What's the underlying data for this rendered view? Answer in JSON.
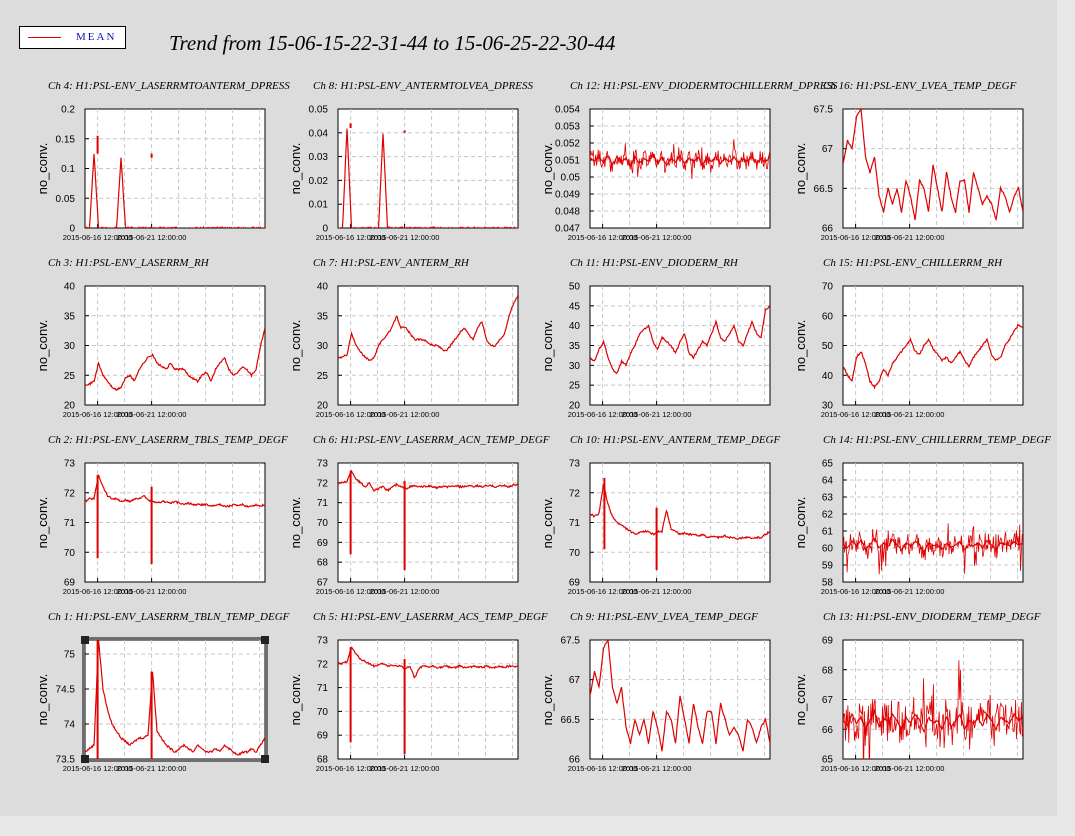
{
  "title": "Trend from 15-06-15-22-31-44 to 15-06-25-22-30-44",
  "legend": {
    "label": "MEAN",
    "color": "#e00000"
  },
  "colors": {
    "series": "#e00000",
    "background": "#dcdcdc",
    "plot_bg": "#ffffff",
    "grid": "#c8c8c8"
  },
  "chart_data": [
    {
      "type": "line",
      "title": "Ch 4: H1:PSL-ENV_LASERRMTOANTERM_DPRESS",
      "ylabel": "no_conv.",
      "ylim": [
        0,
        0.2
      ],
      "yticks": [
        "0",
        "0.05",
        "0.1",
        "0.15",
        "0.2"
      ],
      "xticks": [
        "2015-06-16 12:00:00",
        "2015-06-21 12:00:00"
      ],
      "grid": true,
      "series": [
        {
          "values": [
            0,
            0,
            0.125,
            0,
            0,
            0,
            0,
            0,
            0.118,
            0,
            0,
            0,
            0,
            0,
            0,
            0,
            0,
            0,
            0,
            0,
            0,
            0,
            0,
            0,
            0,
            0,
            0,
            0,
            0,
            0,
            0,
            0,
            0,
            0,
            0,
            0,
            0,
            0,
            0,
            0,
            0
          ]
        }
      ]
    },
    {
      "type": "line",
      "title": "Ch 8: H1:PSL-ENV_ANTERMTOLVEA_DPRESS",
      "ylabel": "no_conv.",
      "ylim": [
        0,
        0.05
      ],
      "yticks": [
        "0",
        "0.01",
        "0.02",
        "0.03",
        "0.04",
        "0.05"
      ],
      "xticks": [
        "2015-06-16 12:00:00",
        "2015-06-21 12:00:00"
      ],
      "grid": true,
      "series": [
        {
          "values": [
            0,
            0,
            0.042,
            0,
            0,
            0,
            0,
            0,
            0,
            0,
            0.04,
            0,
            0,
            0,
            0,
            0,
            0,
            0,
            0,
            0,
            0,
            0,
            0,
            0,
            0,
            0,
            0,
            0,
            0,
            0,
            0,
            0,
            0,
            0,
            0,
            0,
            0,
            0,
            0,
            0,
            0
          ]
        }
      ]
    },
    {
      "type": "line",
      "title": "Ch 12: H1:PSL-ENV_DIODERMTOCHILLERRM_DPRESS",
      "ylabel": "no_conv.",
      "ylim": [
        0.047,
        0.054
      ],
      "yticks": [
        "0.047",
        "0.048",
        "0.049",
        "0.05",
        "0.051",
        "0.052",
        "0.053",
        "0.054"
      ],
      "xticks": [
        "2015-06-16 12:00:00",
        "2015-06-21 12:00:00"
      ],
      "grid": true,
      "series": [
        {
          "values": [
            0.0511,
            0.0509,
            0.0512,
            0.0508,
            0.0513,
            0.0507,
            0.0512,
            0.0509,
            0.0511,
            0.0506,
            0.0512,
            0.0508,
            0.0511,
            0.0509,
            0.0513,
            0.0508,
            0.0512,
            0.0507,
            0.0511,
            0.0509,
            0.0512,
            0.0508,
            0.0511,
            0.0509,
            0.0512,
            0.0507,
            0.0511,
            0.0509,
            0.0512,
            0.0508,
            0.0511,
            0.0509,
            0.0512,
            0.0508,
            0.0511,
            0.0509,
            0.0512,
            0.0508,
            0.0511,
            0.0509,
            0.0512
          ]
        }
      ]
    },
    {
      "type": "line",
      "title": "Ch 16: H1:PSL-ENV_LVEA_TEMP_DEGF",
      "ylabel": "no_conv.",
      "ylim": [
        66,
        67.5
      ],
      "yticks": [
        "66",
        "66.5",
        "67",
        "67.5"
      ],
      "xticks": [
        "2015-06-16 12:00:00",
        "2015-06-21 12:00:00"
      ],
      "grid": true,
      "series": [
        {
          "values": [
            66.8,
            67.1,
            67.0,
            67.4,
            67.5,
            66.9,
            66.7,
            66.9,
            66.4,
            66.2,
            66.5,
            66.3,
            66.5,
            66.2,
            66.6,
            66.4,
            66.1,
            66.6,
            66.5,
            66.2,
            66.8,
            66.5,
            66.2,
            66.7,
            66.4,
            66.2,
            66.6,
            66.6,
            66.2,
            66.7,
            66.5,
            66.3,
            66.4,
            66.3,
            66.1,
            66.5,
            66.4,
            66.2,
            66.4,
            66.5,
            66.2
          ]
        }
      ]
    },
    {
      "type": "line",
      "title": "Ch 3: H1:PSL-ENV_LASERRM_RH",
      "ylabel": "no_conv.",
      "ylim": [
        20,
        40
      ],
      "yticks": [
        "20",
        "25",
        "30",
        "35",
        "40"
      ],
      "xticks": [
        "2015-06-16 12:00:00",
        "2015-06-21 12:00:00"
      ],
      "grid": true,
      "series": [
        {
          "values": [
            23.5,
            23.5,
            24,
            27,
            25,
            24,
            23,
            22.5,
            23,
            24.5,
            25,
            24,
            26,
            27,
            28,
            28.5,
            27,
            26.5,
            26,
            27,
            26,
            26,
            26,
            25,
            24.5,
            24,
            25,
            25.5,
            24,
            26,
            27,
            28,
            26,
            25,
            25.5,
            26.5,
            26,
            25,
            26,
            30,
            33
          ]
        }
      ]
    },
    {
      "type": "line",
      "title": "Ch 7: H1:PSL-ENV_ANTERM_RH",
      "ylabel": "no_conv.",
      "ylim": [
        20,
        40
      ],
      "yticks": [
        "20",
        "25",
        "30",
        "35",
        "40"
      ],
      "xticks": [
        "2015-06-16 12:00:00",
        "2015-06-21 12:00:00"
      ],
      "grid": true,
      "series": [
        {
          "values": [
            28,
            28,
            28.5,
            32,
            30,
            29,
            28,
            27.5,
            28,
            30,
            31,
            32,
            33,
            35,
            33,
            33,
            32,
            31,
            31,
            31,
            30.5,
            30,
            30,
            29.5,
            29,
            30,
            31,
            32,
            33,
            32,
            31,
            33,
            34,
            31,
            30,
            30,
            31,
            32,
            35,
            37,
            38.5
          ]
        }
      ]
    },
    {
      "type": "line",
      "title": "Ch 11: H1:PSL-ENV_DIODERM_RH",
      "ylabel": "no_conv.",
      "ylim": [
        20,
        50
      ],
      "yticks": [
        "20",
        "25",
        "30",
        "35",
        "40",
        "45",
        "50"
      ],
      "xticks": [
        "2015-06-16 12:00:00",
        "2015-06-21 12:00:00"
      ],
      "grid": true,
      "series": [
        {
          "values": [
            32,
            31,
            34,
            36,
            32,
            29,
            28,
            31,
            30,
            33,
            35,
            38,
            39,
            40,
            36,
            34,
            37,
            36,
            35,
            33,
            36,
            38,
            33,
            32,
            34,
            36,
            35,
            38,
            41,
            37,
            36,
            38,
            40,
            36,
            35,
            38,
            41,
            38,
            37,
            44,
            45
          ]
        }
      ]
    },
    {
      "type": "line",
      "title": "Ch 15: H1:PSL-ENV_CHILLERRM_RH",
      "ylabel": "no_conv.",
      "ylim": [
        30,
        70
      ],
      "yticks": [
        "30",
        "40",
        "50",
        "60",
        "70"
      ],
      "xticks": [
        "2015-06-16 12:00:00",
        "2015-06-21 12:00:00"
      ],
      "grid": true,
      "series": [
        {
          "values": [
            43,
            40,
            38,
            46,
            48,
            44,
            38,
            36,
            38,
            42,
            40,
            44,
            46,
            48,
            50,
            52,
            48,
            47,
            50,
            52,
            49,
            47,
            45,
            46,
            44,
            46,
            48,
            45,
            43,
            46,
            48,
            50,
            52,
            47,
            45,
            46,
            50,
            52,
            55,
            57,
            56
          ]
        }
      ]
    },
    {
      "type": "line",
      "title": "Ch 2: H1:PSL-ENV_LASERRM_TBLS_TEMP_DEGF",
      "ylabel": "no_conv.",
      "ylim": [
        69,
        73
      ],
      "yticks": [
        "69",
        "70",
        "71",
        "72",
        "73"
      ],
      "xticks": [
        "2015-06-16 12:00:00",
        "2015-06-21 12:00:00"
      ],
      "grid": true,
      "series": [
        {
          "values": [
            71.7,
            71.8,
            71.8,
            72.6,
            72.2,
            71.9,
            71.8,
            71.8,
            71.7,
            71.75,
            71.7,
            71.8,
            71.8,
            71.9,
            71.75,
            71.7,
            71.65,
            71.7,
            71.7,
            71.65,
            71.7,
            71.65,
            71.6,
            71.65,
            71.6,
            71.6,
            71.6,
            71.6,
            71.55,
            71.6,
            71.6,
            71.55,
            71.55,
            71.6,
            71.55,
            71.6,
            71.55,
            71.55,
            71.6,
            71.55,
            71.6
          ]
        }
      ]
    },
    {
      "type": "line",
      "title": "Ch 6: H1:PSL-ENV_LASERRM_ACN_TEMP_DEGF",
      "ylabel": "no_conv.",
      "ylim": [
        67,
        73
      ],
      "yticks": [
        "67",
        "68",
        "69",
        "70",
        "71",
        "72",
        "73"
      ],
      "xticks": [
        "2015-06-16 12:00:00",
        "2015-06-21 12:00:00"
      ],
      "grid": true,
      "series": [
        {
          "values": [
            72,
            72,
            72.1,
            72.6,
            72.2,
            72,
            71.8,
            72,
            71.6,
            71.7,
            71.8,
            71.6,
            71.8,
            71.9,
            71.8,
            71.7,
            71.8,
            71.85,
            71.8,
            71.8,
            71.85,
            71.8,
            71.75,
            71.8,
            71.8,
            71.8,
            71.85,
            71.8,
            71.8,
            71.85,
            71.8,
            71.85,
            71.8,
            71.85,
            71.85,
            71.8,
            71.85,
            71.85,
            71.8,
            71.9,
            71.9
          ]
        }
      ]
    },
    {
      "type": "line",
      "title": "Ch 10: H1:PSL-ENV_ANTERM_TEMP_DEGF",
      "ylabel": "no_conv.",
      "ylim": [
        69,
        73
      ],
      "yticks": [
        "69",
        "70",
        "71",
        "72",
        "73"
      ],
      "xticks": [
        "2015-06-16 12:00:00",
        "2015-06-21 12:00:00"
      ],
      "grid": true,
      "series": [
        {
          "values": [
            71.3,
            71.2,
            71.3,
            72.3,
            71.6,
            71.2,
            71,
            70.9,
            70.8,
            70.7,
            70.6,
            70.65,
            70.7,
            70.7,
            70.6,
            70.7,
            70.7,
            71.4,
            70.8,
            70.7,
            70.6,
            70.65,
            70.6,
            70.6,
            70.55,
            70.6,
            70.5,
            70.55,
            70.5,
            70.5,
            70.55,
            70.5,
            70.5,
            70.45,
            70.5,
            70.5,
            70.45,
            70.5,
            70.5,
            70.6,
            70.7
          ]
        }
      ]
    },
    {
      "type": "line",
      "title": "Ch 14: H1:PSL-ENV_CHILLERRM_TEMP_DEGF",
      "ylabel": "no_conv.",
      "ylim": [
        58,
        65
      ],
      "yticks": [
        "58",
        "59",
        "60",
        "61",
        "62",
        "63",
        "64",
        "65"
      ],
      "xticks": [
        "2015-06-16 12:00:00",
        "2015-06-21 12:00:00"
      ],
      "grid": true,
      "series": [
        {
          "values": [
            60.2,
            60,
            60.4,
            60.1,
            60.5,
            59.9,
            60.2,
            60.6,
            60,
            60.3,
            60.1,
            60.5,
            60.2,
            59.9,
            60.3,
            60.1,
            60.4,
            60.2,
            59.8,
            60.3,
            60.1,
            60.2,
            59.9,
            60.3,
            60,
            60.2,
            60.4,
            59.9,
            60.2,
            60.1,
            60.3,
            60,
            60.4,
            60.2,
            59.9,
            60.3,
            60.2,
            60.1,
            60.4,
            60.2,
            60.3
          ]
        }
      ]
    },
    {
      "type": "line",
      "title": "Ch 1: H1:PSL-ENV_LASERRM_TBLN_TEMP_DEGF",
      "ylabel": "no_conv.",
      "ylim": [
        73.5,
        75.2
      ],
      "yticks": [
        "73.5",
        "74",
        "74.5",
        "75"
      ],
      "xticks": [
        "2015-06-16 12:00:00",
        "2015-06-21 12:00:00"
      ],
      "grid": true,
      "series": [
        {
          "values": [
            73.6,
            73.65,
            73.7,
            75.2,
            74.5,
            74.2,
            74,
            73.9,
            73.8,
            73.75,
            73.7,
            73.75,
            73.8,
            73.8,
            73.85,
            74.75,
            73.9,
            73.8,
            73.7,
            73.65,
            73.6,
            73.65,
            73.7,
            73.65,
            73.6,
            73.7,
            73.65,
            73.6,
            73.6,
            73.65,
            73.6,
            73.7,
            73.65,
            73.6,
            73.55,
            73.6,
            73.6,
            73.65,
            73.6,
            73.7,
            73.8
          ]
        }
      ]
    },
    {
      "type": "line",
      "title": "Ch 5: H1:PSL-ENV_LASERRM_ACS_TEMP_DEGF",
      "ylabel": "no_conv.",
      "ylim": [
        68,
        73
      ],
      "yticks": [
        "68",
        "69",
        "70",
        "71",
        "72",
        "73"
      ],
      "xticks": [
        "2015-06-16 12:00:00",
        "2015-06-21 12:00:00"
      ],
      "grid": true,
      "series": [
        {
          "values": [
            72,
            72,
            72.1,
            72.7,
            72.4,
            72.2,
            72.1,
            72,
            71.9,
            71.95,
            72,
            71.9,
            71.95,
            71.9,
            71.9,
            71.8,
            71.9,
            71.4,
            71.8,
            71.9,
            71.85,
            71.9,
            71.85,
            71.85,
            71.9,
            71.85,
            71.85,
            71.9,
            71.85,
            71.85,
            71.9,
            71.85,
            71.85,
            71.9,
            71.85,
            71.85,
            71.9,
            71.85,
            71.9,
            71.9,
            71.9
          ]
        }
      ]
    },
    {
      "type": "line",
      "title": "Ch 9: H1:PSL-ENV_LVEA_TEMP_DEGF",
      "ylabel": "no_conv.",
      "ylim": [
        66,
        67.5
      ],
      "yticks": [
        "66",
        "66.5",
        "67",
        "67.5"
      ],
      "xticks": [
        "2015-06-16 12:00:00",
        "2015-06-21 12:00:00"
      ],
      "grid": true,
      "series": [
        {
          "values": [
            66.8,
            67.1,
            66.9,
            67.4,
            67.5,
            66.9,
            66.7,
            66.9,
            66.4,
            66.2,
            66.5,
            66.3,
            66.5,
            66.2,
            66.6,
            66.4,
            66.1,
            66.6,
            66.5,
            66.2,
            66.8,
            66.5,
            66.2,
            66.7,
            66.4,
            66.2,
            66.6,
            66.6,
            66.2,
            66.7,
            66.5,
            66.3,
            66.4,
            66.3,
            66.1,
            66.5,
            66.4,
            66.2,
            66.4,
            66.5,
            66.2
          ]
        }
      ]
    },
    {
      "type": "line",
      "title": "Ch 13: H1:PSL-ENV_DIODERM_TEMP_DEGF",
      "ylabel": "no_conv.",
      "ylim": [
        65,
        69
      ],
      "yticks": [
        "65",
        "66",
        "67",
        "68",
        "69"
      ],
      "xticks": [
        "2015-06-16 12:00:00",
        "2015-06-21 12:00:00"
      ],
      "grid": true,
      "series": [
        {
          "values": [
            66.3,
            66.1,
            66.5,
            66.2,
            66.4,
            66,
            66.3,
            66.6,
            66.1,
            66.4,
            66.2,
            66.5,
            66.3,
            66,
            66.4,
            66.2,
            66.5,
            66.3,
            65.9,
            66.4,
            66.2,
            66.3,
            66,
            66.4,
            66.1,
            66.3,
            66.5,
            66,
            66.3,
            66.2,
            66.4,
            66.1,
            66.5,
            66.3,
            66,
            66.4,
            66.3,
            66.2,
            66.5,
            66.3,
            66.4
          ]
        }
      ]
    }
  ]
}
